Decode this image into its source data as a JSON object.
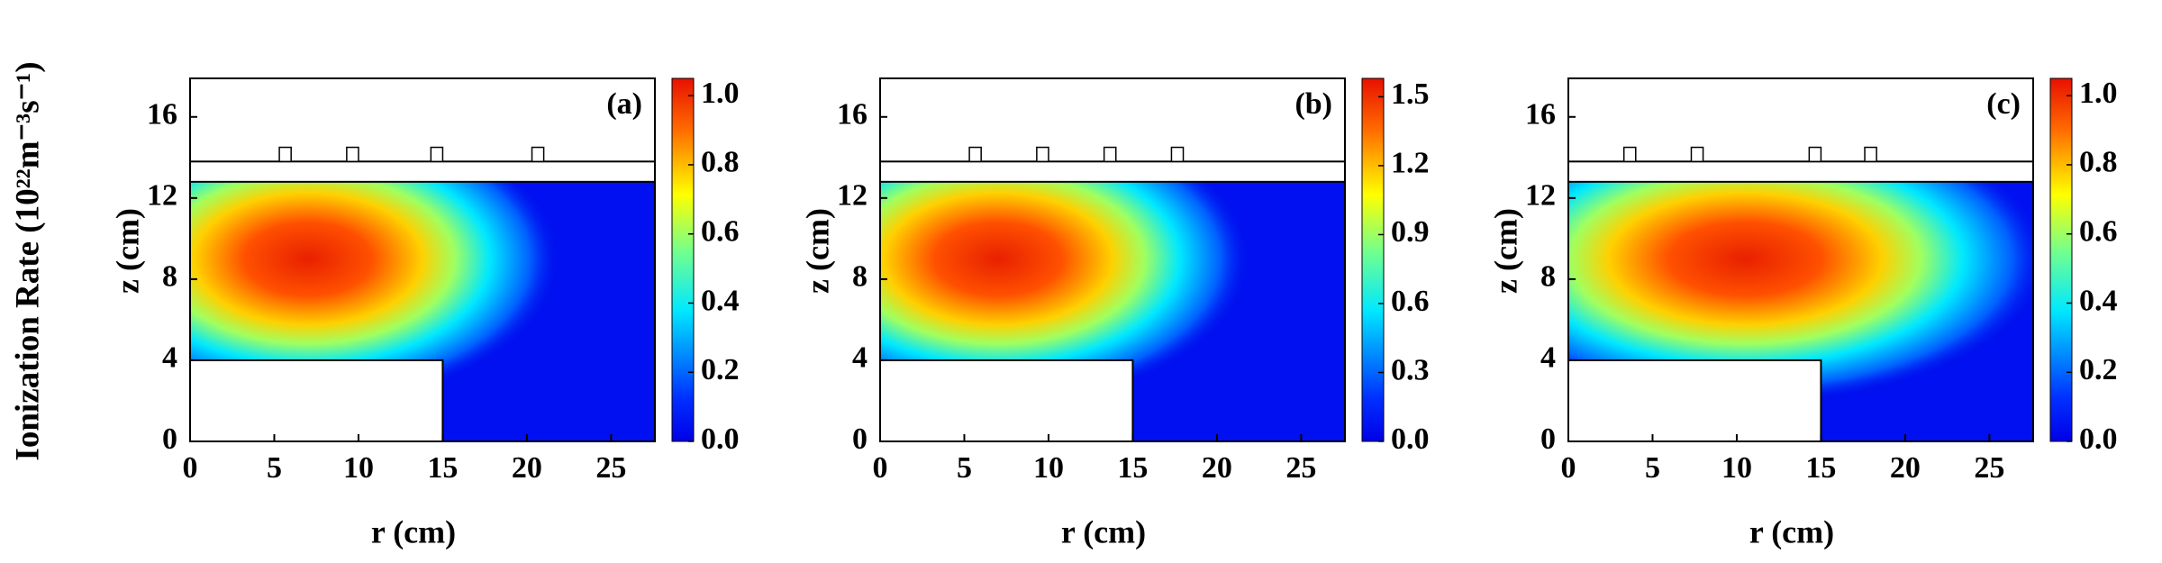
{
  "label": "Ionization Rate (10²²m⁻³s⁻¹)",
  "chart_data": [
    {
      "type": "heatmap",
      "panel_label": "(a)",
      "xlabel": "r (cm)",
      "ylabel": "z (cm)",
      "xlim": [
        0,
        27.6
      ],
      "xticks": [
        0,
        5,
        10,
        15,
        20,
        25
      ],
      "ylim": [
        0,
        17.9
      ],
      "yticks": [
        0,
        4,
        8,
        12,
        16
      ],
      "clim": [
        0,
        1.05
      ],
      "cticks": [
        {
          "value": 0,
          "label": "0.0"
        },
        0.2,
        0.4,
        0.6,
        0.8,
        {
          "value": 1,
          "label": "1.0"
        }
      ]
    },
    {
      "type": "heatmap",
      "panel_label": "(b)",
      "xlabel": "r (cm)",
      "ylabel": "z (cm)",
      "xlim": [
        0,
        27.6
      ],
      "xticks": [
        0,
        5,
        10,
        15,
        20,
        25
      ],
      "ylim": [
        0,
        17.9
      ],
      "yticks": [
        0,
        4,
        8,
        12,
        16
      ],
      "clim": [
        0,
        1.58
      ],
      "cticks": [
        {
          "value": 0,
          "label": "0.0"
        },
        0.3,
        0.6,
        0.9,
        1.2,
        1.5
      ]
    },
    {
      "type": "heatmap",
      "panel_label": "(c)",
      "xlabel": "r (cm)",
      "ylabel": "z (cm)",
      "xlim": [
        0,
        27.6
      ],
      "xticks": [
        0,
        5,
        10,
        15,
        20,
        25
      ],
      "ylim": [
        0,
        17.9
      ],
      "yticks": [
        0,
        4,
        8,
        12,
        16
      ],
      "clim": [
        0,
        1.05
      ],
      "cticks": [
        {
          "value": 0,
          "label": "0.0"
        },
        0.2,
        0.4,
        0.6,
        0.8,
        {
          "value": 1,
          "label": "1.0"
        }
      ]
    }
  ]
}
